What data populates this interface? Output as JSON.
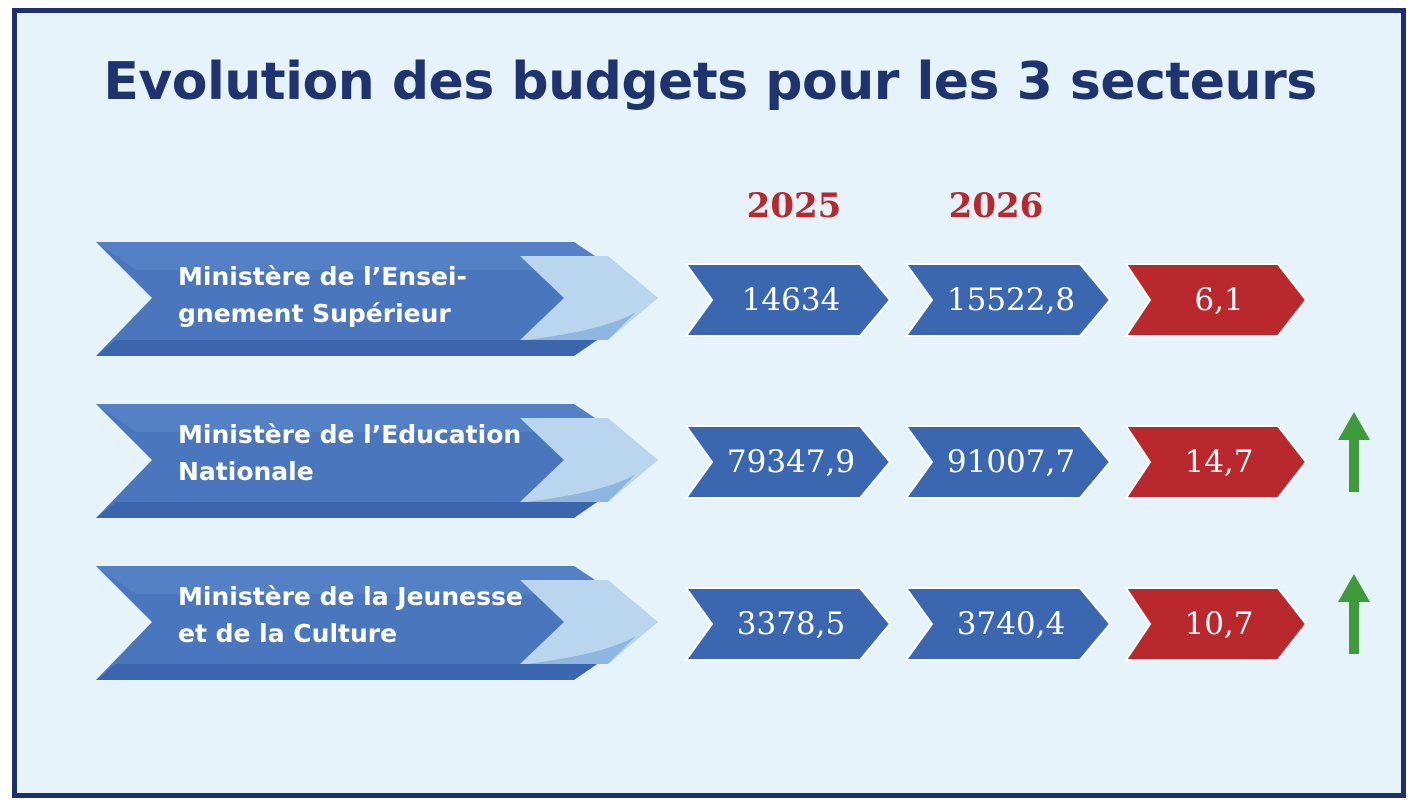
{
  "title": "Evolution des budgets pour les 3 secteurs",
  "years": [
    "2025",
    "2026"
  ],
  "colors": {
    "title": "#1f336e",
    "year": "#b8282d",
    "value_box": "#3b67b1",
    "percent_box": "#b8282d",
    "ministry_arrow": "#3f6bb3",
    "up_arrow": "#3e9a3a"
  },
  "rows": [
    {
      "ministry_line1": "Ministère de l’Ensei-",
      "ministry_line2": "gnement Supérieur",
      "value_2025": "14634",
      "value_2026": "15522,8",
      "change": "6,1",
      "trend_icon": null
    },
    {
      "ministry_line1": "Ministère de l’Education",
      "ministry_line2": "Nationale",
      "value_2025": "79347,9",
      "value_2026": "91007,7",
      "change": "14,7",
      "trend_icon": "up-arrow-icon"
    },
    {
      "ministry_line1": "Ministère de la Jeunesse",
      "ministry_line2": "et de la Culture",
      "value_2025": "3378,5",
      "value_2026": "3740,4",
      "change": "10,7",
      "trend_icon": "up-arrow-icon"
    }
  ]
}
